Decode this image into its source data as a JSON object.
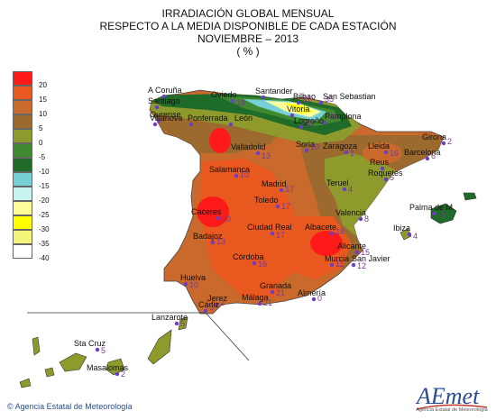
{
  "titles": {
    "line1": "IRRADIACIÓN GLOBAL MENSUAL",
    "line2": "RESPECTO A LA MEDIA DISPONIBLE DE CADA ESTACIÓN",
    "line3": "NOVIEMBRE – 2013",
    "line4": "( % )"
  },
  "legend": {
    "ticks": [
      "20",
      "15",
      "10",
      "5",
      "0",
      "-5",
      "-10",
      "-15",
      "-20",
      "-25",
      "-30",
      "-35",
      "-40"
    ],
    "colors": [
      "#ff1a1a",
      "#e8581f",
      "#c96a2c",
      "#9c6a2e",
      "#8e9a2c",
      "#3f8a2e",
      "#1f6b2a",
      "#76d0d6",
      "#c9f5f1",
      "#ffff9a",
      "#ffff00",
      "#f5f57a",
      "#ffffff"
    ]
  },
  "stations": [
    {
      "name": "A Coruña",
      "value": ""
    },
    {
      "name": "Santiago",
      "value": ""
    },
    {
      "name": "Ourense",
      "value": ""
    },
    {
      "name": "Oviedo",
      "value": "19"
    },
    {
      "name": "Santander",
      "value": ""
    },
    {
      "name": "Bilbao",
      "value": "31"
    },
    {
      "name": "San Sebastian",
      "value": "35"
    },
    {
      "name": "Vitoria",
      "value": ""
    },
    {
      "name": "Pamplona",
      "value": "26"
    },
    {
      "name": "Logroño",
      "value": "13"
    },
    {
      "name": "Villanova",
      "value": ""
    },
    {
      "name": "Ponferrada",
      "value": ""
    },
    {
      "name": "León",
      "value": ""
    },
    {
      "name": "Valladolid",
      "value": "13"
    },
    {
      "name": "Soria",
      "value": "10"
    },
    {
      "name": "Zaragoza",
      "value": "1"
    },
    {
      "name": "Lleida",
      "value": "16"
    },
    {
      "name": "Girona",
      "value": "2"
    },
    {
      "name": "Barcelona",
      "value": "6"
    },
    {
      "name": "Reus",
      "value": ""
    },
    {
      "name": "Roquetes",
      "value": "5"
    },
    {
      "name": "Salamanca",
      "value": "10"
    },
    {
      "name": "Madrid",
      "value": "17"
    },
    {
      "name": "Teruel",
      "value": "4"
    },
    {
      "name": "Toledo",
      "value": "17"
    },
    {
      "name": "Caceres",
      "value": "20"
    },
    {
      "name": "Valencia",
      "value": "8"
    },
    {
      "name": "Palma de M.",
      "value": "-5"
    },
    {
      "name": "Ibiza",
      "value": "4"
    },
    {
      "name": "Badajoz",
      "value": "13"
    },
    {
      "name": "Ciudad Real",
      "value": "17"
    },
    {
      "name": "Albacete",
      "value": "18"
    },
    {
      "name": "Alicante",
      "value": "15"
    },
    {
      "name": "Murcia",
      "value": "11"
    },
    {
      "name": "San Javier",
      "value": "12"
    },
    {
      "name": "Córdoba",
      "value": "16"
    },
    {
      "name": "Huelva",
      "value": "10"
    },
    {
      "name": "Granada",
      "value": "21"
    },
    {
      "name": "Almería",
      "value": "0"
    },
    {
      "name": "Jerez",
      "value": "2"
    },
    {
      "name": "Cádiz",
      "value": "5"
    },
    {
      "name": "Málaga",
      "value": "21"
    },
    {
      "name": "Lanzarote",
      "value": "5"
    },
    {
      "name": "Sta Cruz",
      "value": "5"
    },
    {
      "name": "Masalomas",
      "value": "2"
    }
  ],
  "credit": "Agencia Estatal de Meteorología",
  "logo": {
    "text": "AEmet",
    "subtext": "Agencia Estatal de Meteorología"
  }
}
